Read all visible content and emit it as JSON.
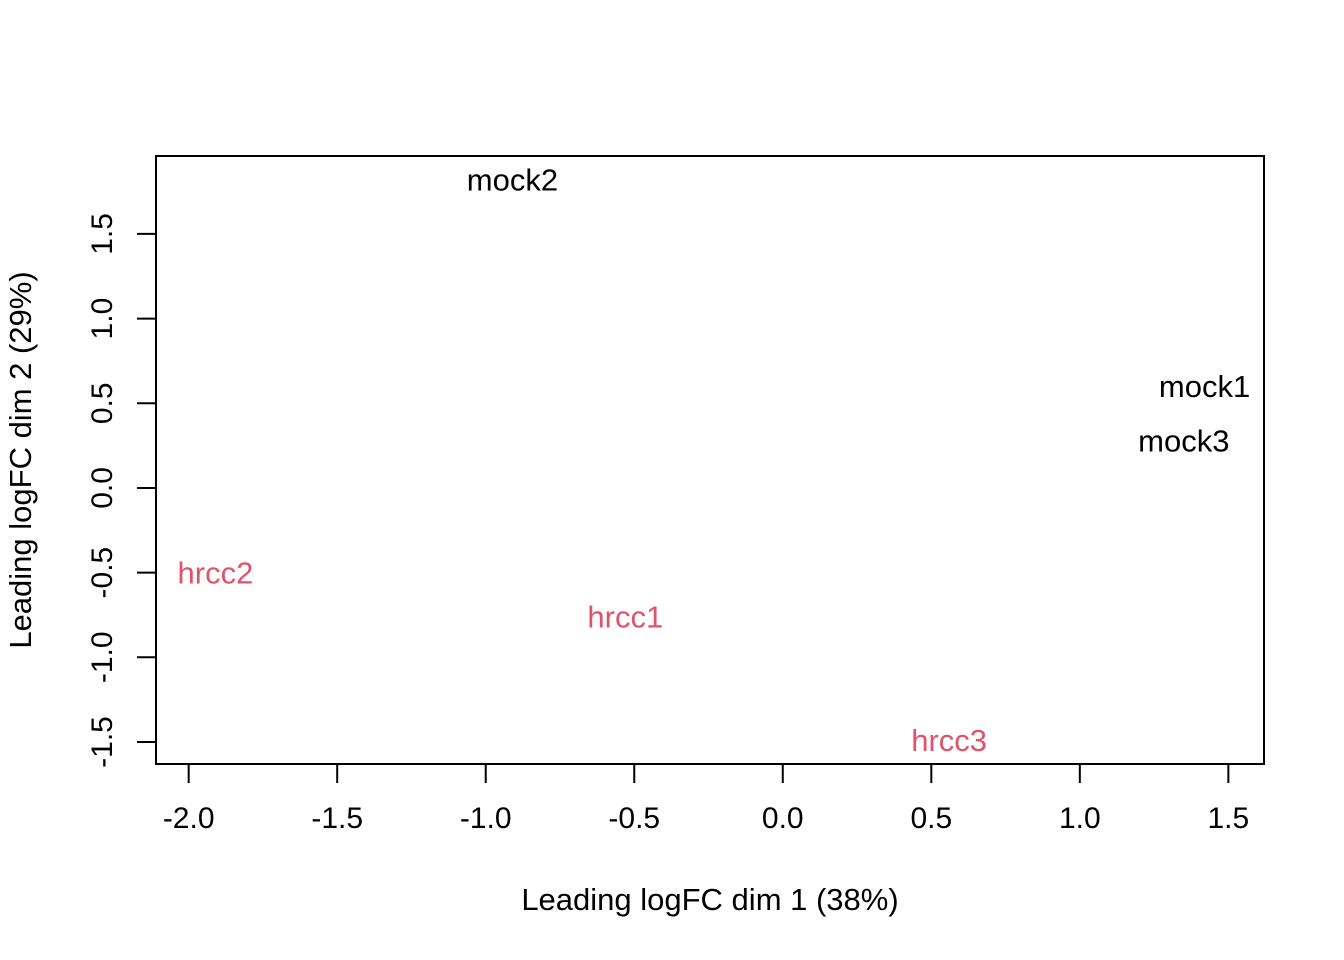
{
  "page": {
    "background_color": "#ffffff",
    "description": "MDS plot of RNA-seq samples (edgeR/limma plotMDS style)"
  },
  "chart_data": {
    "type": "scatter",
    "subtype": "mds-text-label-plot",
    "title": "",
    "xlabel": "Leading logFC dim 1 (38%)",
    "ylabel": "Leading logFC dim 2 (29%)",
    "xlim": [
      -2.11,
      1.62
    ],
    "ylim": [
      -1.63,
      1.96
    ],
    "grid": false,
    "legend": "none",
    "axis_color": "#000000",
    "background_color": "#ffffff",
    "xticks": {
      "values": [
        -2.0,
        -1.5,
        -1.0,
        -0.5,
        0.0,
        0.5,
        1.0,
        1.5
      ],
      "labels": [
        "-2.0",
        "-1.5",
        "-1.0",
        "-0.5",
        "0.0",
        "0.5",
        "1.0",
        "1.5"
      ]
    },
    "yticks": {
      "values": [
        -1.5,
        -1.0,
        -0.5,
        0.0,
        0.5,
        1.0,
        1.5
      ],
      "labels": [
        "-1.5",
        "-1.0",
        "-0.5",
        "0.0",
        "0.5",
        "1.0",
        "1.5"
      ]
    },
    "series": [
      {
        "name": "mock",
        "color": "#000000",
        "marker": "text-label",
        "points": [
          {
            "label": "mock1",
            "x": 1.42,
            "y": 0.6
          },
          {
            "label": "mock2",
            "x": -0.91,
            "y": 1.82
          },
          {
            "label": "mock3",
            "x": 1.35,
            "y": 0.28
          }
        ]
      },
      {
        "name": "hrcc",
        "color": "#DF536B",
        "marker": "text-label",
        "points": [
          {
            "label": "hrcc1",
            "x": -0.53,
            "y": -0.76
          },
          {
            "label": "hrcc2",
            "x": -1.91,
            "y": -0.5
          },
          {
            "label": "hrcc3",
            "x": 0.56,
            "y": -1.49
          }
        ]
      }
    ]
  }
}
